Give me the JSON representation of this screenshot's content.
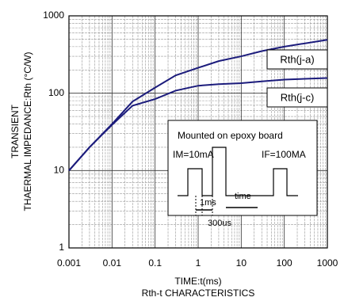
{
  "chart_data": {
    "type": "line",
    "subtitle": "Rth-t CHARACTERISTICS",
    "x_label": "TIME:t(ms)",
    "y_label": [
      "TRANSIENT",
      "THAERMAL IMPEDANCE:Rth (°C/W)"
    ],
    "x": [
      0.001,
      0.003,
      0.01,
      0.03,
      0.1,
      0.3,
      1,
      3,
      10,
      30,
      100,
      1000
    ],
    "series": [
      {
        "name": "Rth(j-a)",
        "color": "#1c1c7c",
        "values": [
          10,
          20,
          40,
          78,
          118,
          170,
          213,
          260,
          300,
          350,
          400,
          490
        ]
      },
      {
        "name": "Rth(j-c)",
        "color": "#1c1c7c",
        "values": [
          10,
          20,
          39,
          69,
          84,
          108,
          125,
          131,
          135,
          142,
          150,
          157
        ]
      }
    ],
    "xlim": [
      0.001,
      1000
    ],
    "ylim": [
      1,
      1000
    ],
    "xticks": [
      0.001,
      0.01,
      0.1,
      1,
      10,
      100,
      1000
    ],
    "yticks": [
      1,
      10,
      100,
      1000
    ],
    "xscale": "log",
    "yscale": "log",
    "grid": true,
    "inset": {
      "title": "Mounted on epoxy board",
      "im": "IM=10mA",
      "if": "IF=100MA",
      "pulse": "1ms",
      "gap": "300us",
      "period": "time"
    }
  }
}
